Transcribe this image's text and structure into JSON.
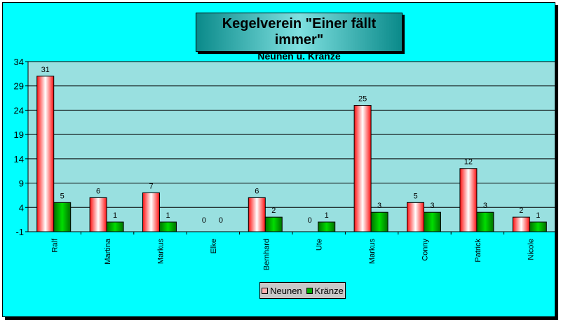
{
  "chart_data": {
    "type": "bar",
    "title": "Kegelverein \"Einer fällt immer\"",
    "subtitle": "Neunen u. Kränze",
    "categories": [
      "Ralf",
      "Martina",
      "Markus",
      "Elke",
      "Bernhard",
      "Ute",
      "Markus",
      "Conny",
      "Patrick",
      "Nicole"
    ],
    "series": [
      {
        "name": "Neunen",
        "values": [
          31,
          6,
          7,
          0,
          6,
          0,
          25,
          5,
          12,
          2
        ],
        "color": "#ff2020"
      },
      {
        "name": "Kränze",
        "values": [
          5,
          1,
          1,
          0,
          2,
          1,
          3,
          3,
          3,
          1
        ],
        "color": "#00a000"
      }
    ],
    "yticks": [
      -1,
      4,
      9,
      14,
      19,
      24,
      29,
      34
    ],
    "ylim": [
      -1,
      34
    ],
    "xlabel": "",
    "ylabel": "",
    "grid": true,
    "legend_position": "bottom",
    "plot_background": "#99e0e0"
  }
}
